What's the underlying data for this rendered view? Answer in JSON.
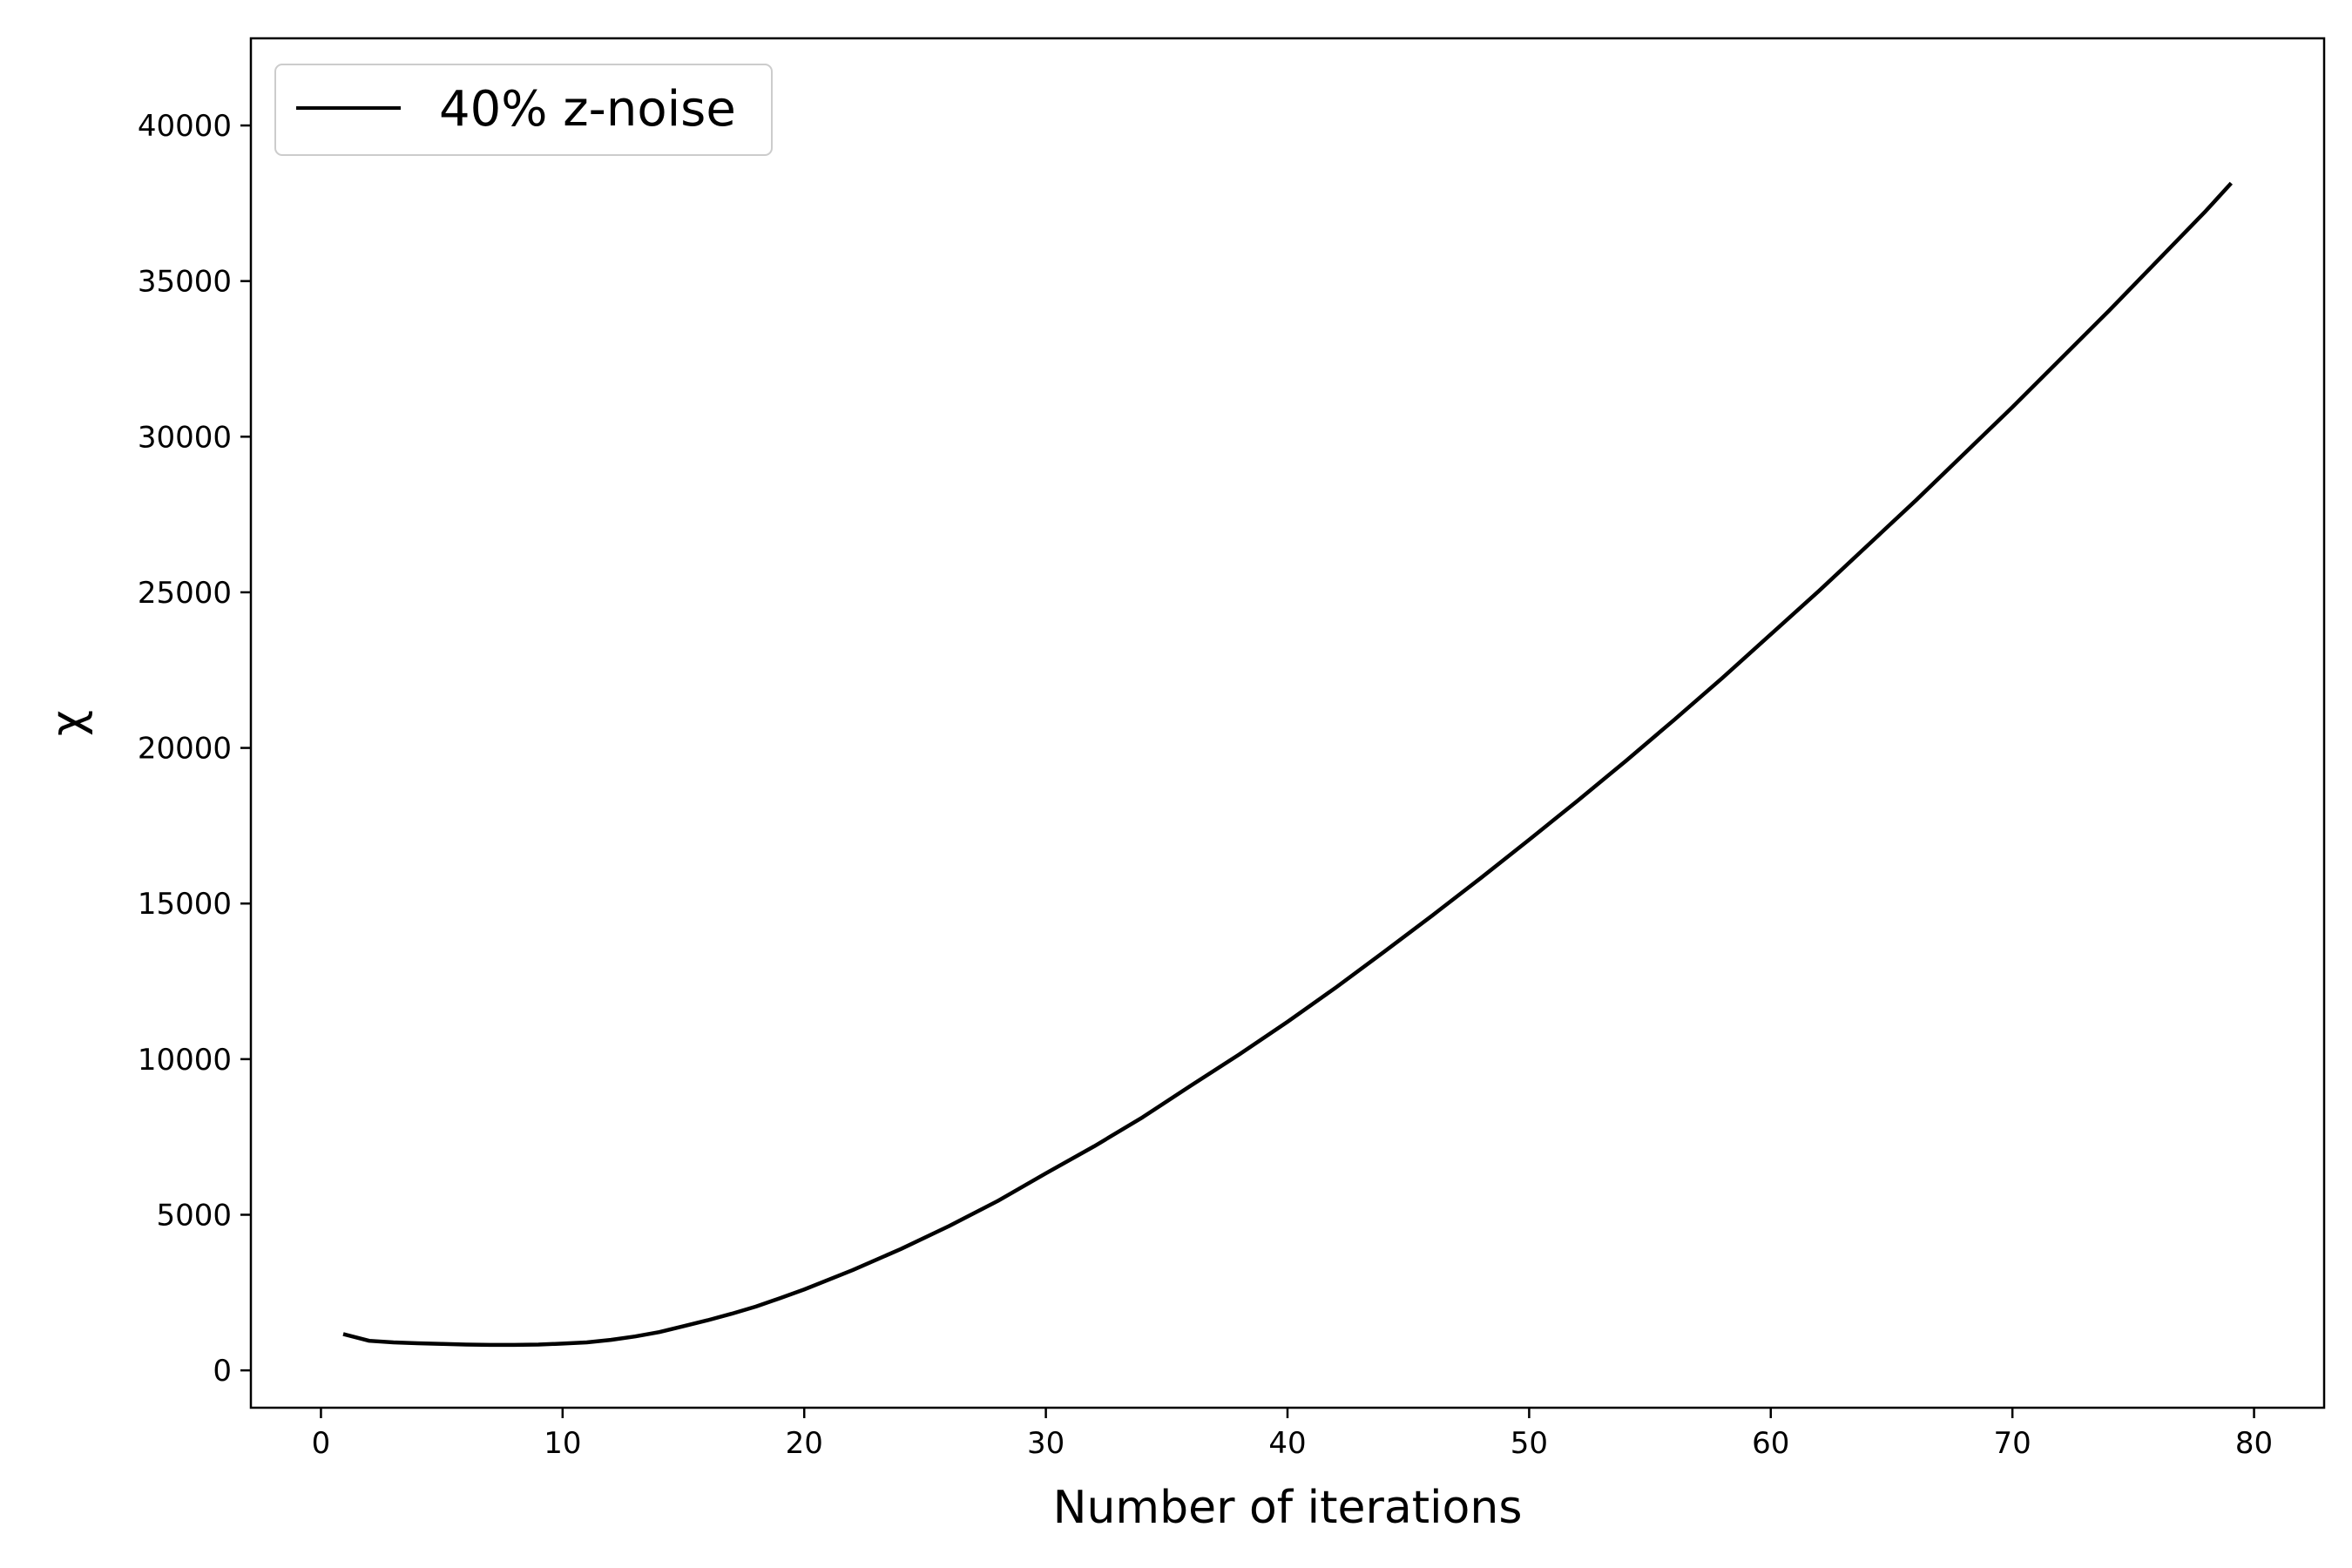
{
  "chart_data": {
    "type": "line",
    "title": "",
    "xlabel": "Number of iterations",
    "ylabel": "χ",
    "xlim": [
      -2.9,
      82.9
    ],
    "ylim": [
      -1200,
      42800
    ],
    "xticks": [
      0,
      10,
      20,
      30,
      40,
      50,
      60,
      70,
      80
    ],
    "yticks": [
      0,
      5000,
      10000,
      15000,
      20000,
      25000,
      30000,
      35000,
      40000
    ],
    "grid": false,
    "legend_position": "top-left",
    "series": [
      {
        "name": "40% z-noise",
        "color": "#000000",
        "x": [
          1,
          2,
          3,
          4,
          5,
          6,
          7,
          8,
          9,
          10,
          11,
          12,
          13,
          14,
          15,
          16,
          17,
          18,
          19,
          20,
          22,
          24,
          26,
          28,
          30,
          32,
          34,
          36,
          38,
          40,
          42,
          44,
          46,
          48,
          50,
          52,
          54,
          56,
          58,
          60,
          62,
          64,
          66,
          68,
          70,
          72,
          74,
          76,
          78,
          79
        ],
        "y": [
          1150,
          950,
          900,
          870,
          850,
          830,
          820,
          820,
          830,
          860,
          900,
          980,
          1090,
          1230,
          1420,
          1610,
          1820,
          2050,
          2320,
          2600,
          3220,
          3900,
          4640,
          5440,
          6330,
          7200,
          8130,
          9150,
          10150,
          11200,
          12300,
          13450,
          14620,
          15820,
          17050,
          18300,
          19580,
          20900,
          22250,
          23650,
          25050,
          26500,
          27950,
          29450,
          30950,
          32500,
          34050,
          35650,
          37250,
          38100
        ]
      }
    ]
  }
}
